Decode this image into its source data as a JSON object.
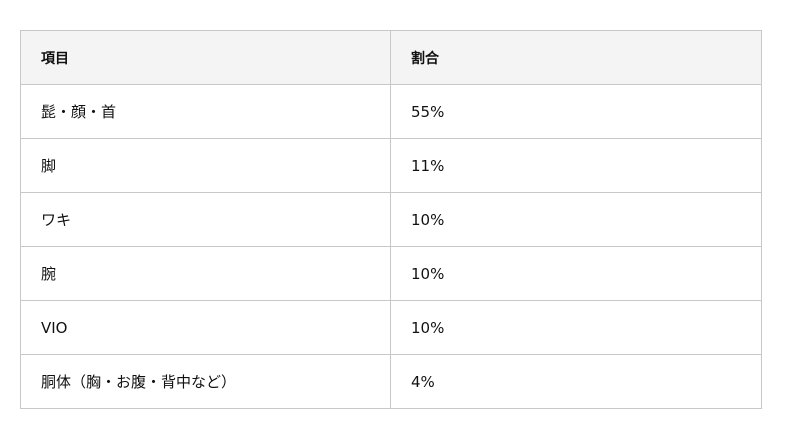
{
  "table": {
    "headers": [
      "項目",
      "割合"
    ],
    "rows": [
      [
        "髭・顔・首",
        "55%"
      ],
      [
        "脚",
        "11%"
      ],
      [
        "ワキ",
        "10%"
      ],
      [
        "腕",
        "10%"
      ],
      [
        "VIO",
        "10%"
      ],
      [
        "胴体（胸・お腹・背中など）",
        "4%"
      ]
    ]
  }
}
